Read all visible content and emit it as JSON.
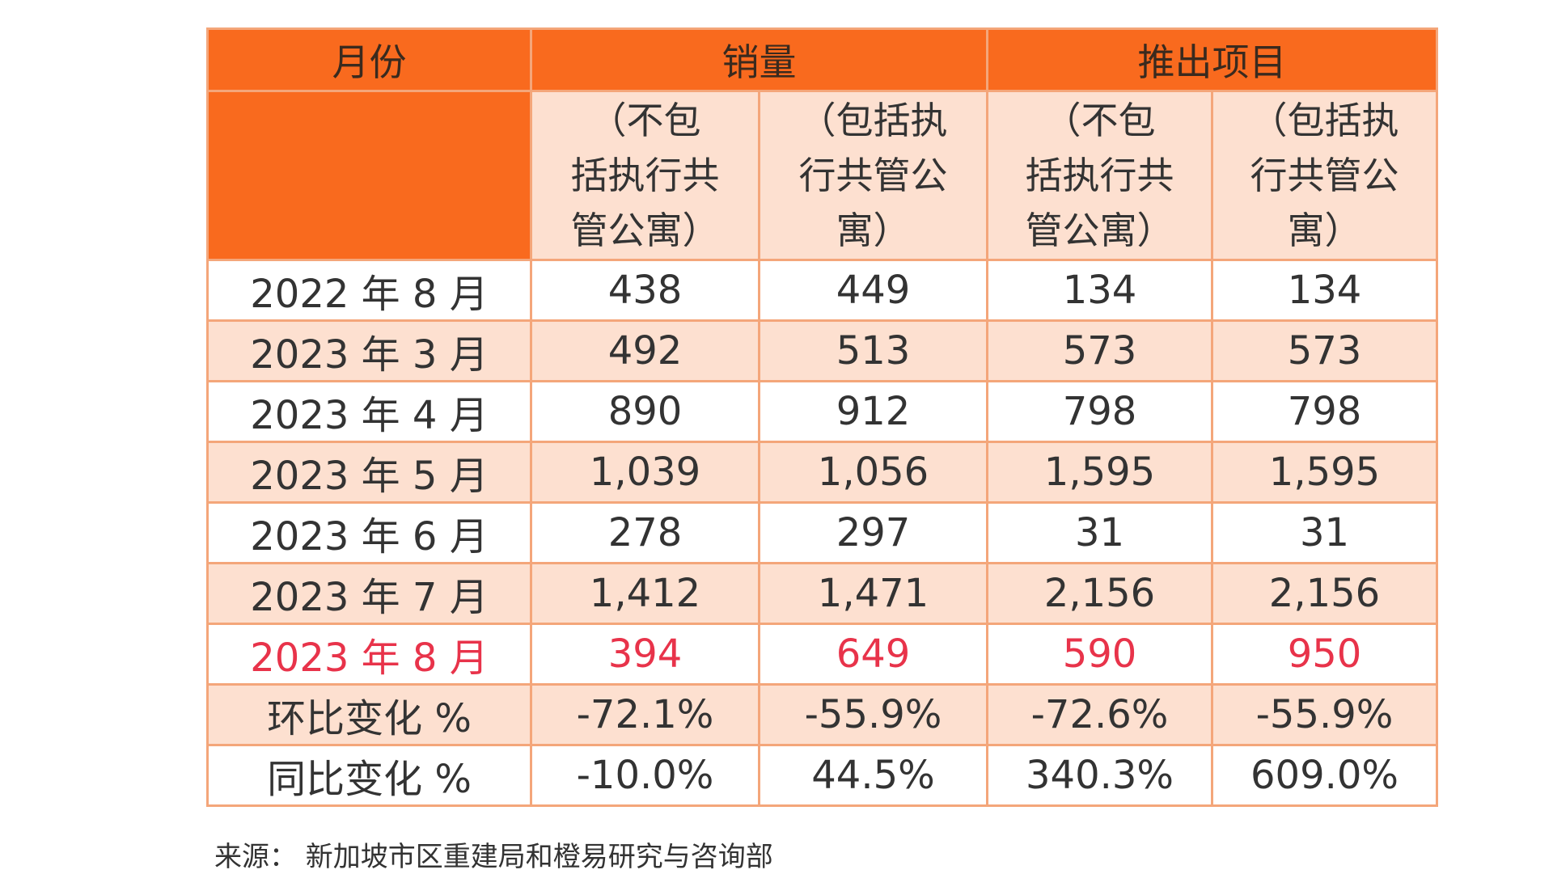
{
  "table": {
    "header": {
      "month": "月份",
      "sales": "销量",
      "launches": "推出项目"
    },
    "subheaders": [
      "（不包括执行共管公寓）",
      "（包括执行共管公寓）",
      "（不包括执行共管公寓）",
      "（包括执行共管公寓）"
    ],
    "rows": [
      {
        "month": "2022 年 8 月",
        "values": [
          "438",
          "449",
          "134",
          "134"
        ],
        "style": "plain"
      },
      {
        "month": "2023 年 3 月",
        "values": [
          "492",
          "513",
          "573",
          "573"
        ],
        "style": "shade"
      },
      {
        "month": "2023 年 4 月",
        "values": [
          "890",
          "912",
          "798",
          "798"
        ],
        "style": "plain"
      },
      {
        "month": "2023 年 5 月",
        "values": [
          "1,039",
          "1,056",
          "1,595",
          "1,595"
        ],
        "style": "shade"
      },
      {
        "month": "2023 年 6 月",
        "values": [
          "278",
          "297",
          "31",
          "31"
        ],
        "style": "plain"
      },
      {
        "month": "2023 年 7 月",
        "values": [
          "1,412",
          "1,471",
          "2,156",
          "2,156"
        ],
        "style": "shade"
      },
      {
        "month": "2023 年 8 月",
        "values": [
          "394",
          "649",
          "590",
          "950"
        ],
        "style": "plain highlight"
      },
      {
        "month": "环比变化 %",
        "values": [
          "-72.1%",
          "-55.9%",
          "-72.6%",
          "-55.9%"
        ],
        "style": "shade"
      },
      {
        "month": "同比变化 %",
        "values": [
          "-10.0%",
          "44.5%",
          "340.3%",
          "609.0%"
        ],
        "style": "plain"
      }
    ]
  },
  "source": "来源： 新加坡市区重建局和橙易研究与咨询部",
  "colors": {
    "header_orange": "#F96A1E",
    "row_shade": "#FDE0D0",
    "border": "#F4A67A",
    "highlight_red": "#E8334A"
  }
}
